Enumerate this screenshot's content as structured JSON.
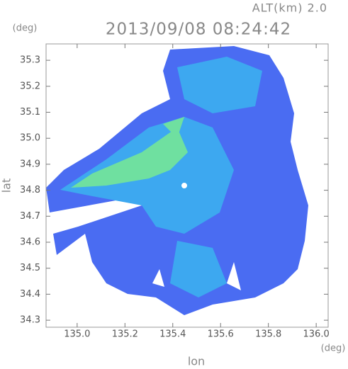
{
  "chart_data": {
    "type": "map",
    "altitude_label": "ALT(km) 2.0",
    "title": "2013/09/08 08:24:42",
    "y_unit": "(deg)",
    "ylabel": "lat",
    "x_unit": "(deg)",
    "xlabel": "lon",
    "xlim": [
      134.87,
      136.05
    ],
    "ylim": [
      34.273,
      35.363
    ],
    "xticks": [
      {
        "value": 135,
        "label": "135.0"
      },
      135.2,
      135.4,
      135.6,
      135.8,
      {
        "value": 136,
        "label": "136.0"
      }
    ],
    "yticks": [
      35.3,
      35.2,
      35.1,
      {
        "value": 35,
        "label": "35.0"
      },
      34.9,
      34.8,
      34.7,
      34.6,
      34.5,
      34.4,
      34.3
    ]
  }
}
